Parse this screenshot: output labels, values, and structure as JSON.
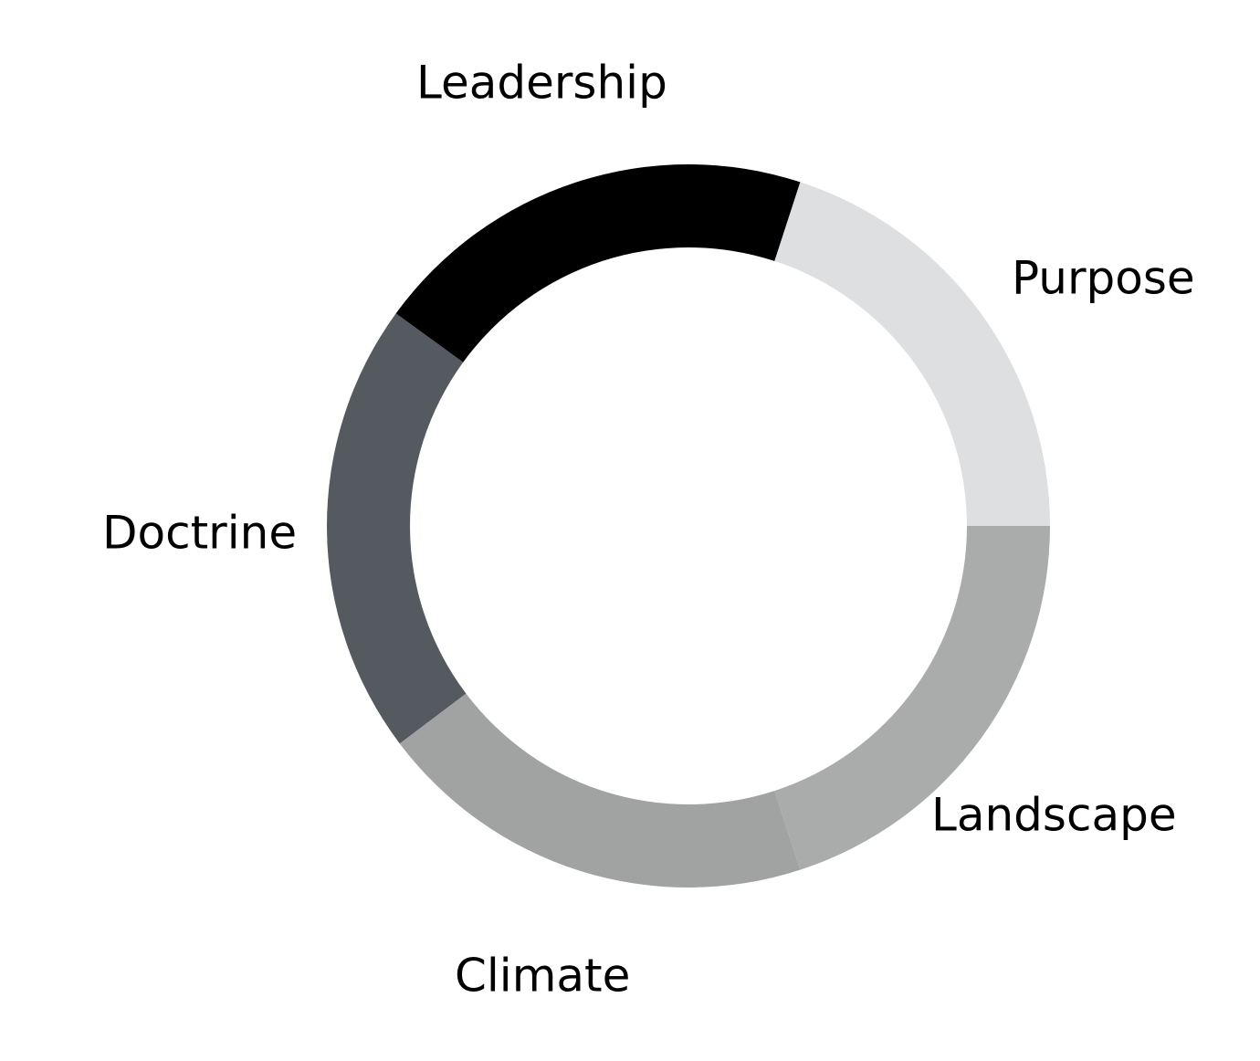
{
  "diagram": {
    "type": "ring",
    "segments": [
      {
        "id": "leadership",
        "label": "Leadership",
        "color": "#000000"
      },
      {
        "id": "purpose",
        "label": "Purpose",
        "color": "#dedfe0"
      },
      {
        "id": "landscape",
        "label": "Landscape",
        "color": "#aaacab"
      },
      {
        "id": "climate",
        "label": "Climate",
        "color": "#a1a3a2"
      },
      {
        "id": "doctrine",
        "label": "Doctrine",
        "color": "#555a60"
      }
    ]
  }
}
